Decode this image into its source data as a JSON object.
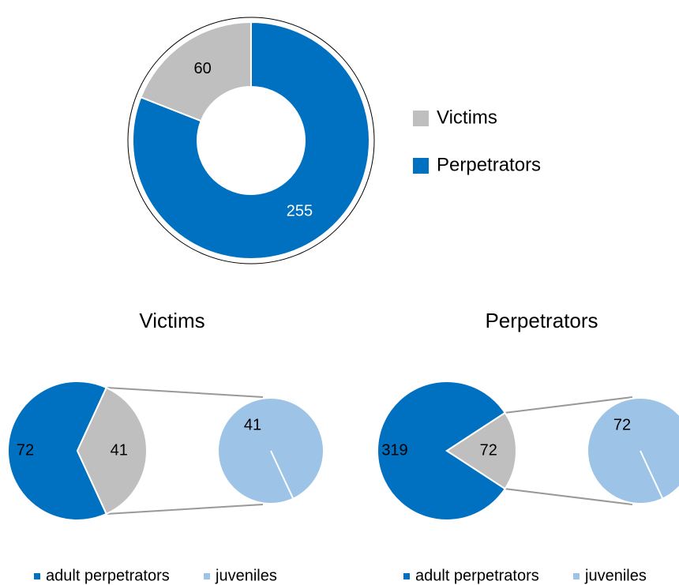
{
  "chart_data": [
    {
      "type": "donut",
      "categories": [
        "Victims",
        "Perpetrators"
      ],
      "values": [
        60,
        255
      ],
      "colors": [
        "#bfbfbf",
        "#0070c0"
      ],
      "legend": "right"
    },
    {
      "type": "pie-of-pie",
      "title": "Victims",
      "categories": [
        "adult perpetrators",
        "juveniles"
      ],
      "values": [
        72,
        41
      ],
      "colors": [
        "#0070c0",
        "#9dc3e6"
      ],
      "split_color": "#bfbfbf",
      "legend": "bottom"
    },
    {
      "type": "pie-of-pie",
      "title": "Perpetrators",
      "categories": [
        "adult perpetrators",
        "juveniles"
      ],
      "values": [
        319,
        72
      ],
      "colors": [
        "#0070c0",
        "#9dc3e6"
      ],
      "split_color": "#bfbfbf",
      "legend": "bottom"
    }
  ]
}
